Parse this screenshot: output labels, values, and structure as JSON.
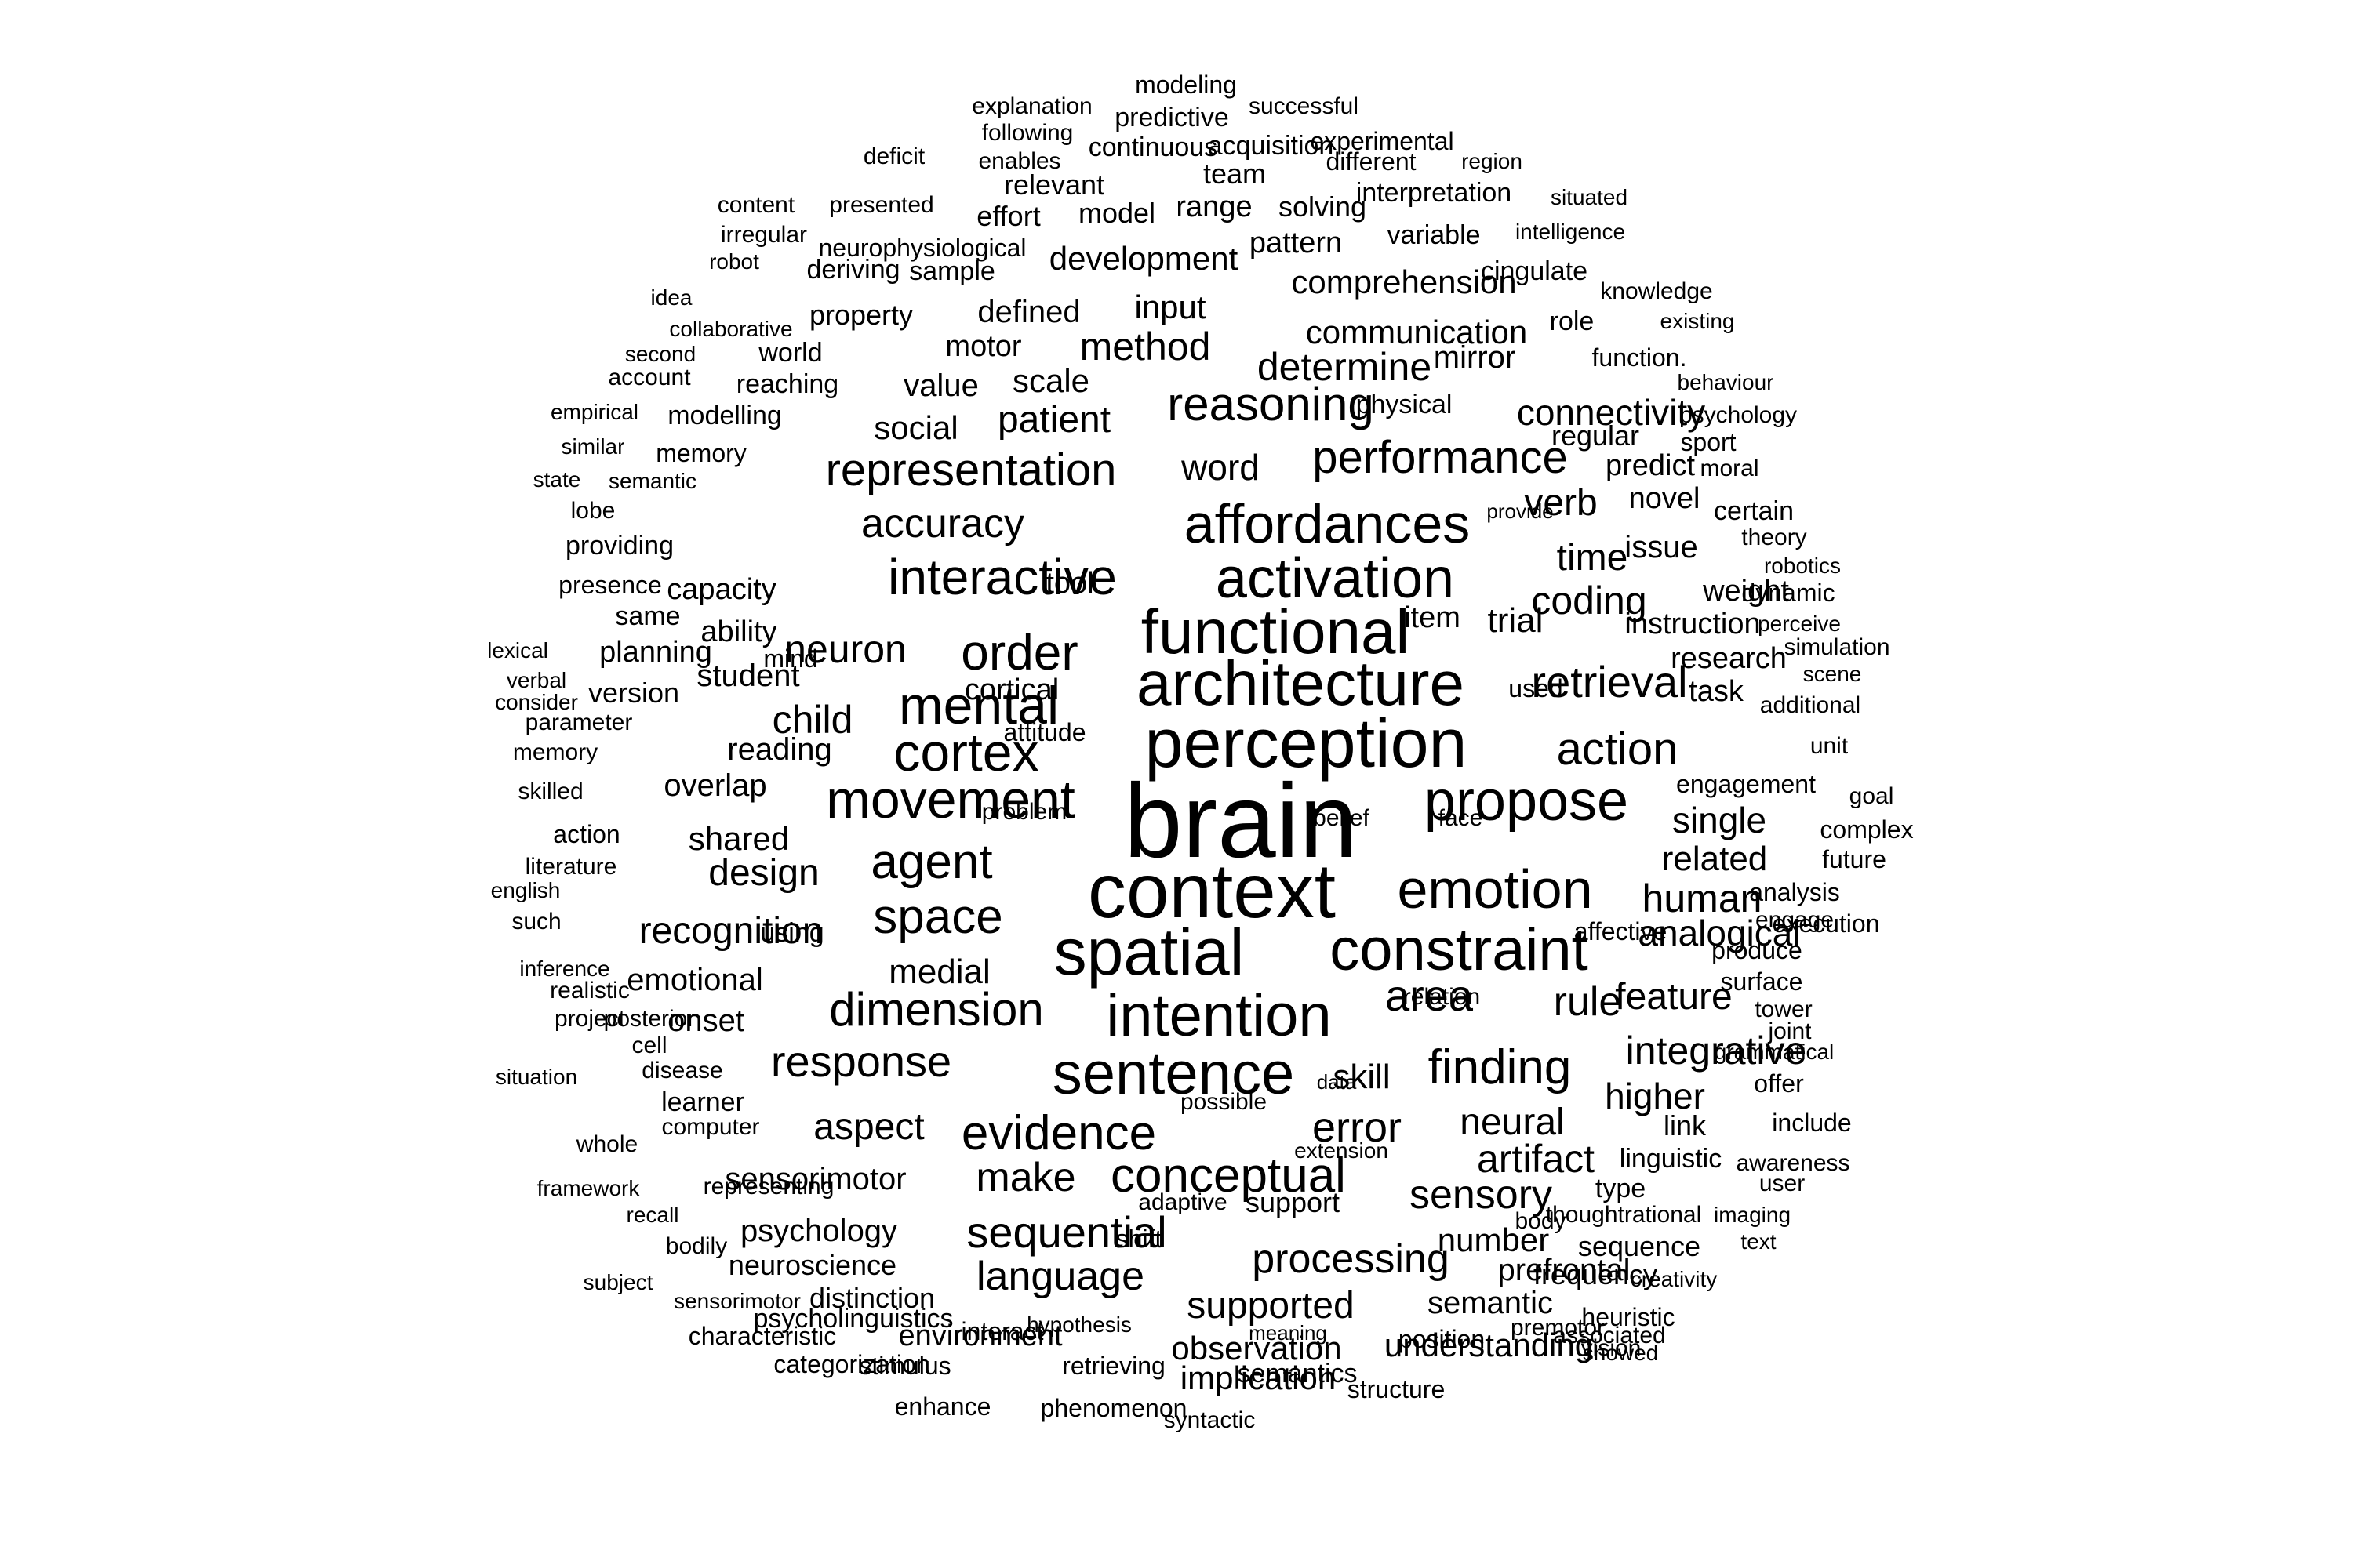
{
  "word_cloud": {
    "text_color": "#000000",
    "background_color": "#ffffff",
    "words": [
      "brain",
      "context",
      "perception",
      "spatial",
      "architecture",
      "functional",
      "constraint",
      "sentence",
      "intention",
      "activation",
      "affordances",
      "emotion",
      "propose",
      "movement",
      "mental",
      "cortex",
      "order",
      "interactive",
      "agent",
      "space",
      "dimension",
      "finding",
      "evidence",
      "conceptual",
      "reasoning",
      "representation",
      "performance",
      "retrieval",
      "action",
      "area",
      "response",
      "sequential",
      "error",
      "processing",
      "language",
      "recognition",
      "integrative",
      "neuron",
      "accuracy",
      "make",
      "coding",
      "artifact",
      "human",
      "analogical",
      "rule",
      "feature",
      "method",
      "determine",
      "connectivity",
      "child",
      "design",
      "sensory",
      "neural",
      "supported",
      "aspect",
      "patient",
      "time",
      "verb",
      "single",
      "related",
      "higher",
      "connectivity_dup_skip",
      "communication",
      "comprehension",
      "development",
      "word",
      "input",
      "scale",
      "social",
      "value",
      "defined",
      "motor",
      "property",
      "skill",
      "observation",
      "understanding",
      "semantic",
      "number",
      "prefrontal",
      "implication",
      "medial",
      "shared",
      "reading",
      "overlap",
      "emotional",
      "onset",
      "sensorimotor",
      "psychology",
      "neuroscience",
      "distinction",
      "environment",
      "student",
      "ability",
      "capacity",
      "tool",
      "cortical",
      "mind",
      "planning",
      "item",
      "trial",
      "instruction",
      "research",
      "task",
      "weight",
      "issue",
      "novel",
      "predict",
      "regular",
      "mirror",
      "physical",
      "role",
      "pattern",
      "variable",
      "cingulate",
      "range",
      "solving",
      "team",
      "acquisition",
      "model",
      "effort",
      "relevant",
      "continuous",
      "predictive",
      "modeling",
      "successful",
      "explanation",
      "following",
      "enables",
      "deficit",
      "experimental",
      "different",
      "region",
      "interpretation",
      "situated",
      "intelligence",
      "content",
      "presented",
      "irregular",
      "neurophysiological",
      "robot",
      "deriving",
      "sample",
      "idea",
      "knowledge",
      "existing",
      "collaborative",
      "second",
      "world",
      "account",
      "reaching",
      "function.",
      "behaviour",
      "empirical",
      "modelling",
      "psychology2",
      "similar",
      "memory",
      "sport",
      "moral",
      "state",
      "semantic2",
      "lobe",
      "provide",
      "certain",
      "providing",
      "theory",
      "presence",
      "robotics",
      "same",
      "dynamic",
      "perceive",
      "lexical",
      "simulation",
      "verbal",
      "scene",
      "consider",
      "version",
      "used",
      "additional",
      "parameter",
      "attitude",
      "unit",
      "memory2",
      "skilled",
      "engagement",
      "goal",
      "problem",
      "belief",
      "face",
      "action2",
      "complex",
      "literature",
      "future",
      "analysis",
      "english",
      "engage",
      "such",
      "using",
      "execution",
      "affective",
      "produce",
      "inference",
      "relation",
      "surface",
      "realistic",
      "tower",
      "posterior",
      "joint",
      "project",
      "grammatical",
      "cell",
      "disease",
      "situation",
      "data",
      "offer",
      "learner",
      "computer",
      "possible",
      "link",
      "include",
      "whole",
      "extension",
      "linguistic",
      "awareness",
      "representing",
      "type",
      "user",
      "framework",
      "adaptive",
      "support",
      "recall",
      "thoughtrational",
      "imaging",
      "bodily",
      "shift",
      "sequence",
      "body",
      "text",
      "frequency",
      "subject",
      "creativity",
      "sensorimotor2",
      "heuristic",
      "hypothesis",
      "associated",
      "characteristic",
      "vision",
      "meaning",
      "psycholinguistics",
      "categorization",
      "interact",
      "position",
      "premotor",
      "showed",
      "stimulus",
      "retrieving",
      "semantics",
      "structure",
      "enhance",
      "phenomenon",
      "syntactic"
    ]
  }
}
